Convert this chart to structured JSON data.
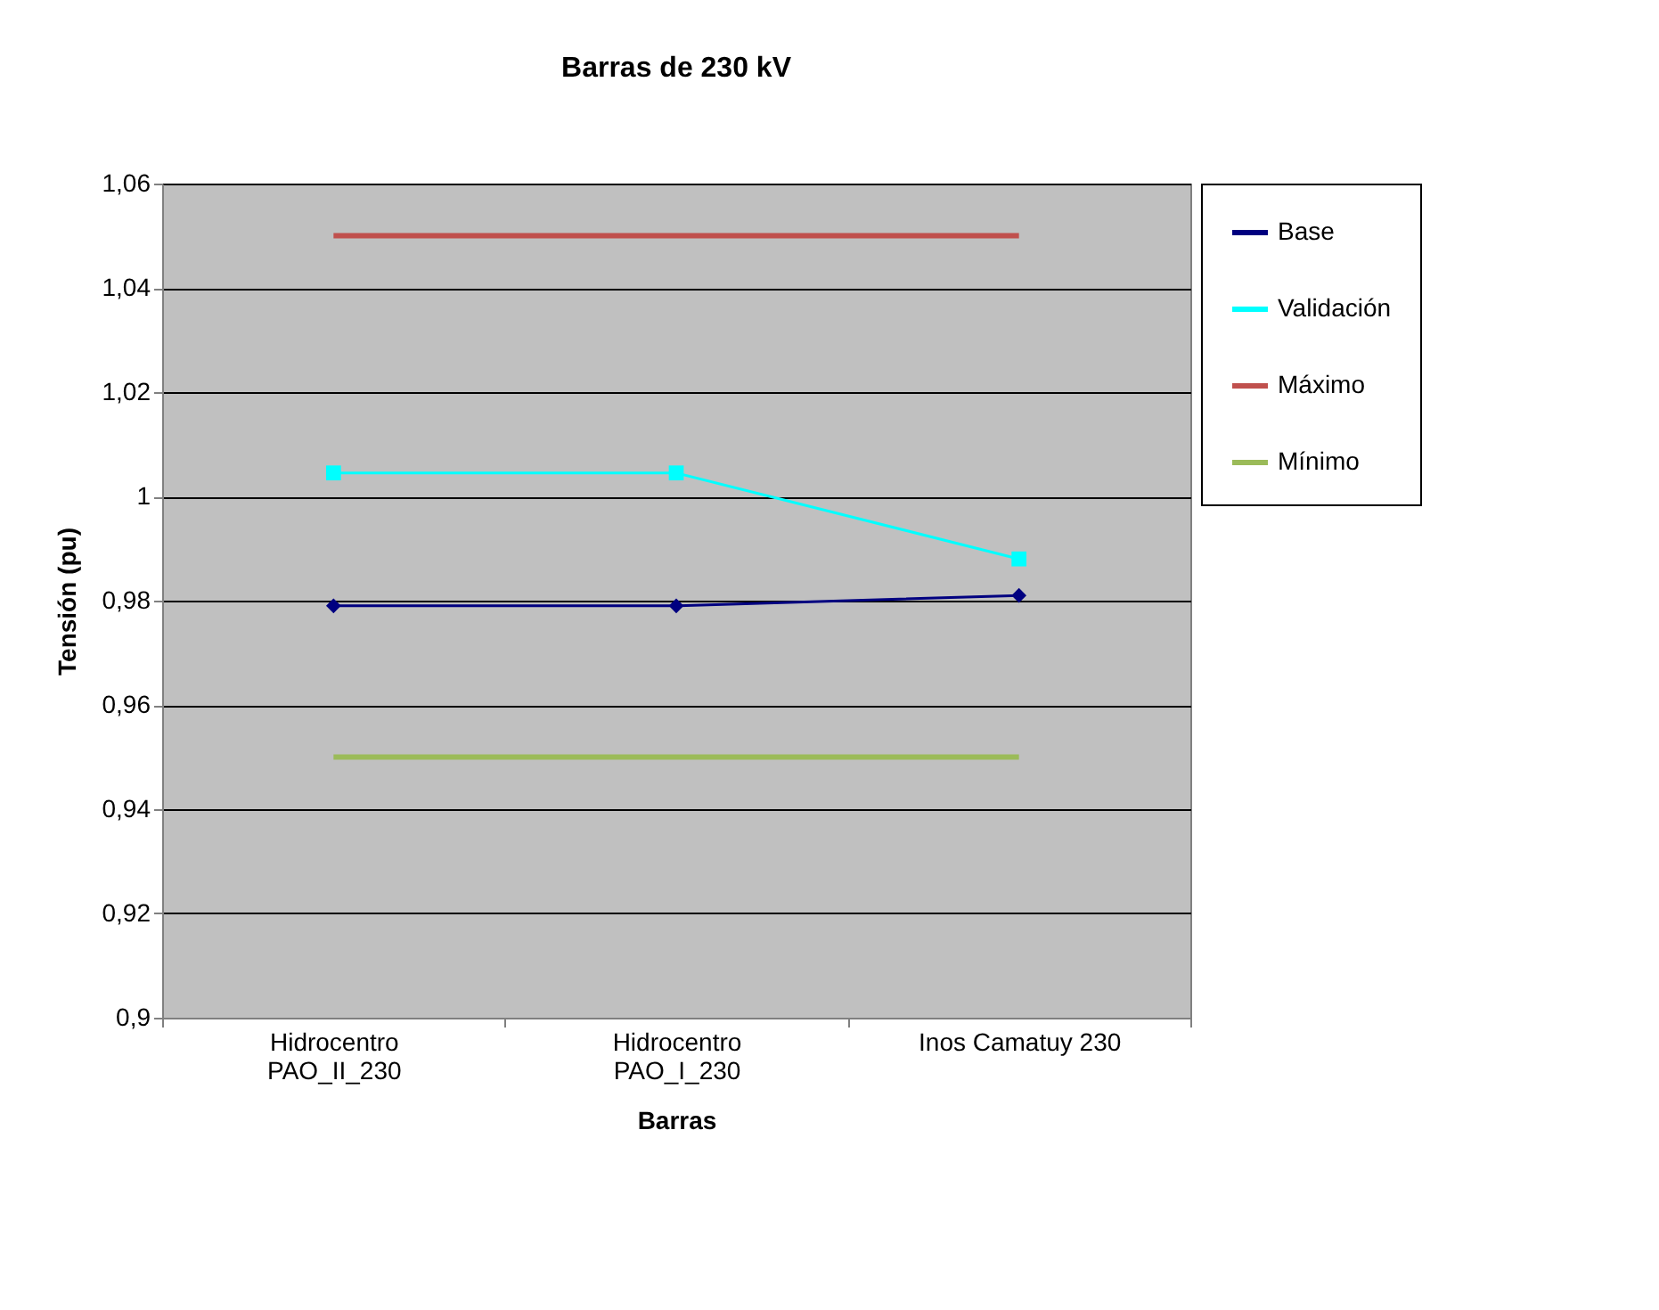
{
  "chart_data": {
    "type": "line",
    "title": "Barras de 230 kV",
    "xlabel": "Barras",
    "ylabel": "Tensión (pu)",
    "categories": [
      "Hidrocentro\nPAO_II_230",
      "Hidrocentro\nPAO_I_230",
      "Inos Camatuy 230"
    ],
    "series": [
      {
        "name": "Base",
        "color": "#000080",
        "marker": "diamond",
        "values": [
          0.979,
          0.979,
          0.981
        ]
      },
      {
        "name": "Validación",
        "color": "#00ffff",
        "marker": "square",
        "values": [
          1.0045,
          1.0045,
          0.988
        ]
      },
      {
        "name": "Máximo",
        "color": "#c0504d",
        "marker": "none",
        "values": [
          1.05,
          1.05,
          1.05
        ]
      },
      {
        "name": "Mínimo",
        "color": "#9bbb59",
        "marker": "none",
        "values": [
          0.95,
          0.95,
          0.95
        ]
      }
    ],
    "ylim": [
      0.9,
      1.06
    ],
    "yticks": [
      {
        "value": 0.9,
        "label": "0,9"
      },
      {
        "value": 0.92,
        "label": "0,92"
      },
      {
        "value": 0.94,
        "label": "0,94"
      },
      {
        "value": 0.96,
        "label": "0,96"
      },
      {
        "value": 0.98,
        "label": "0,98"
      },
      {
        "value": 1,
        "label": "1"
      },
      {
        "value": 1.02,
        "label": "1,02"
      },
      {
        "value": 1.04,
        "label": "1,04"
      },
      {
        "value": 1.06,
        "label": "1,06"
      }
    ],
    "grid": "y",
    "legend": "right"
  }
}
